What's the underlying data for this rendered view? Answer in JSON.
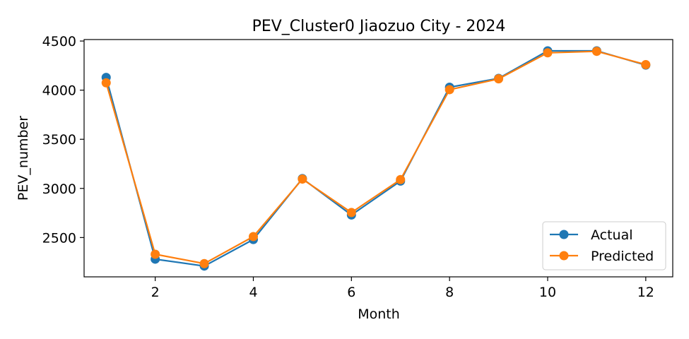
{
  "chart_data": {
    "type": "line",
    "title": "PEV_Cluster0 Jiaozuo City - 2024",
    "xlabel": "Month",
    "ylabel": "PEV_number",
    "x": [
      1,
      2,
      3,
      4,
      5,
      6,
      7,
      8,
      9,
      10,
      11,
      12
    ],
    "xlim": [
      0.55,
      12.55
    ],
    "ylim": [
      2100,
      4515
    ],
    "xticks": [
      2,
      4,
      6,
      8,
      10,
      12
    ],
    "yticks": [
      2500,
      3000,
      3500,
      4000,
      4500
    ],
    "grid": false,
    "legend_position": "lower-right",
    "series": [
      {
        "name": "Actual",
        "color": "#1f77b4",
        "marker": "circle",
        "values": [
          4130,
          2280,
          2210,
          2480,
          3100,
          2730,
          3075,
          4030,
          4120,
          4400,
          4400,
          4255
        ]
      },
      {
        "name": "Predicted",
        "color": "#ff7f0e",
        "marker": "circle",
        "values": [
          4075,
          2330,
          2235,
          2510,
          3095,
          2755,
          3090,
          4005,
          4115,
          4380,
          4395,
          4260
        ]
      }
    ]
  }
}
